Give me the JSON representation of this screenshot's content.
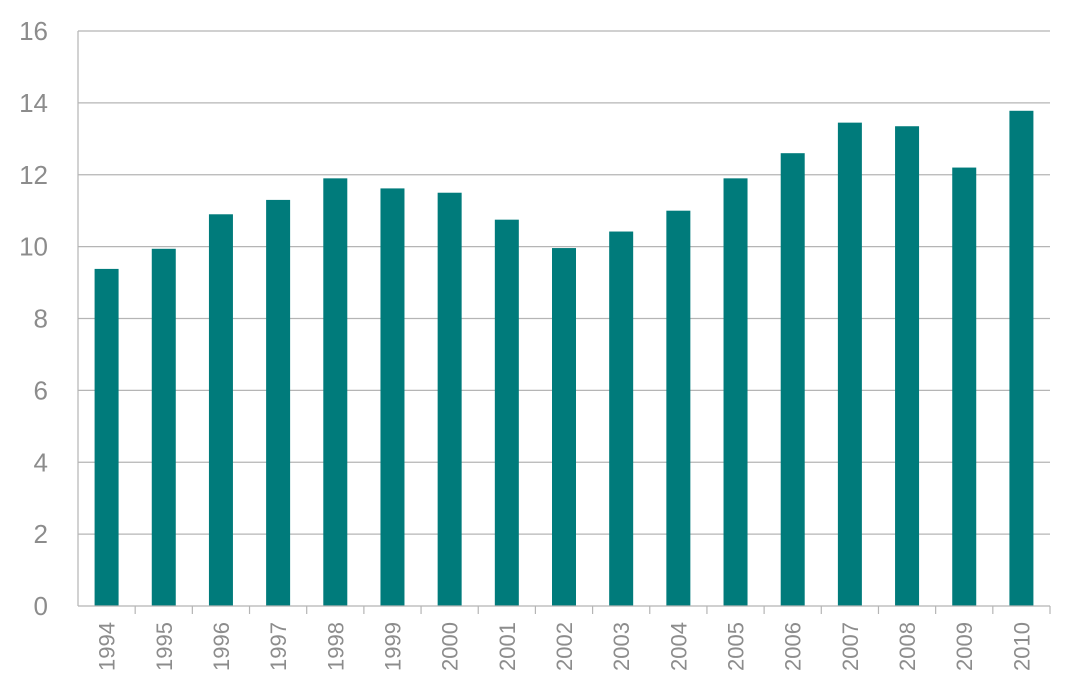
{
  "chart_data": {
    "type": "bar",
    "title": "",
    "xlabel": "",
    "ylabel": "",
    "categories": [
      "1994",
      "1995",
      "1996",
      "1997",
      "1998",
      "1999",
      "2000",
      "2001",
      "2002",
      "2003",
      "2004",
      "2005",
      "2006",
      "2007",
      "2008",
      "2009",
      "2010"
    ],
    "values": [
      9.38,
      9.94,
      10.9,
      11.3,
      11.9,
      11.62,
      11.5,
      10.75,
      9.96,
      10.42,
      11.0,
      11.9,
      12.6,
      13.45,
      13.35,
      12.2,
      13.78
    ],
    "ylim": [
      0,
      16
    ],
    "yticks": [
      "0",
      "2",
      "4",
      "6",
      "8",
      "10",
      "12",
      "14",
      "16"
    ],
    "grid": true,
    "bar_color": "#007b7b",
    "grid_color": "#b5b5b5",
    "text_color": "#8c8c8c"
  }
}
